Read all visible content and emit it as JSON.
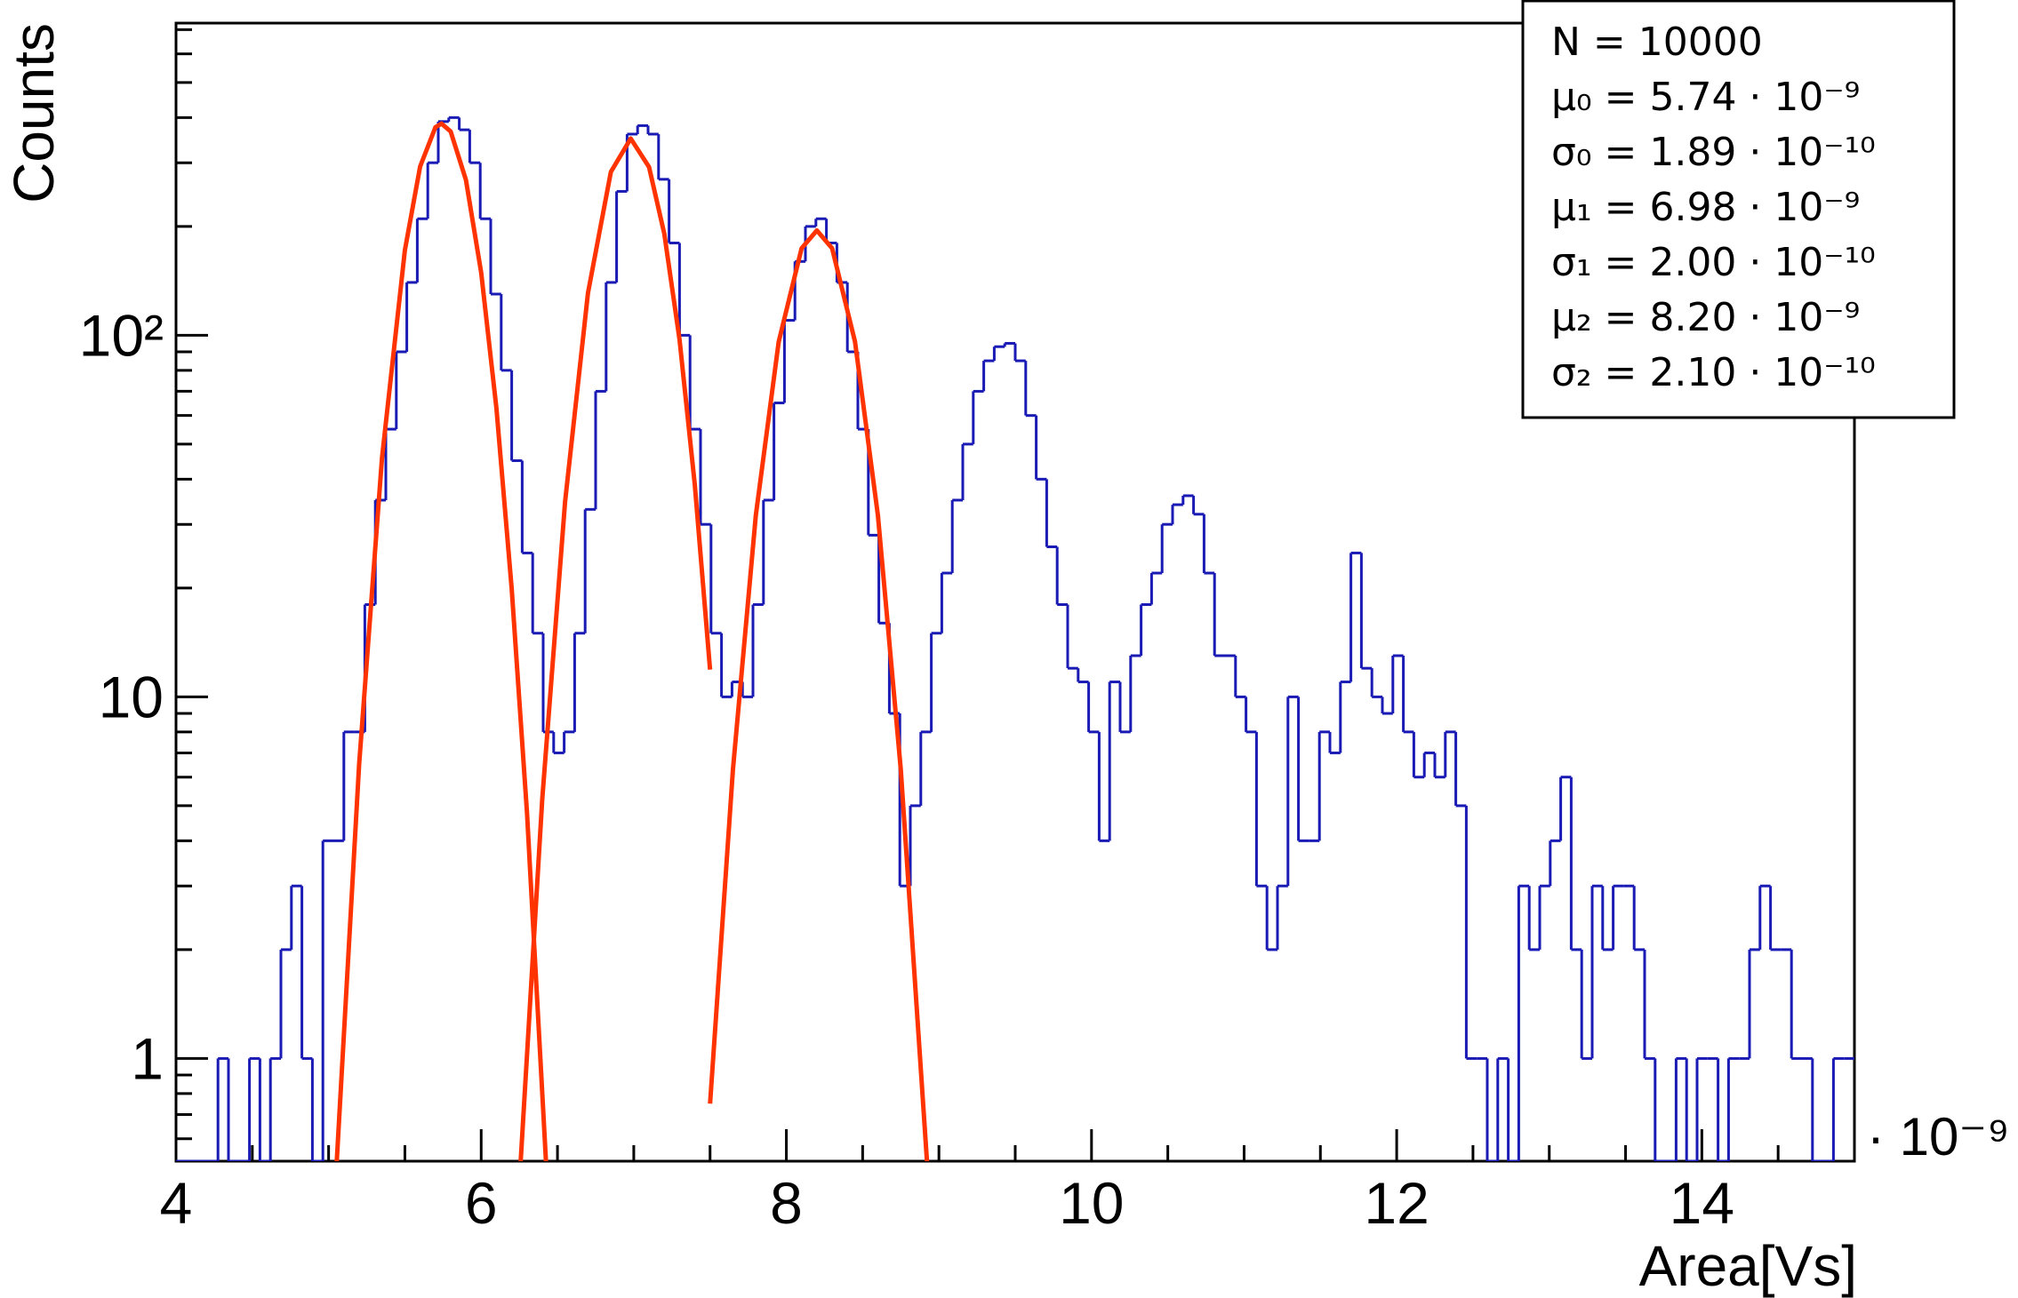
{
  "chart_data": {
    "type": "histogram",
    "y_label": "Counts",
    "x_label": "Area[Vs]",
    "x_multiplier": "· 10⁻⁹",
    "log_y": true,
    "color": "#1a1ab4",
    "fit_color": "#ff3300",
    "xlim": [
      4,
      15
    ],
    "xticks": [
      4,
      6,
      8,
      10,
      12,
      14
    ],
    "ylim": [
      0.52,
      730
    ],
    "yticks": [
      1,
      10,
      {
        "value": 100,
        "label": "10²"
      }
    ],
    "stats": [
      "N = 10000",
      "μ₀ = 5.74 · 10⁻⁹",
      "σ₀ = 1.89 · 10⁻¹⁰",
      "μ₁ = 6.98 · 10⁻⁹",
      "σ₁ = 2.00 · 10⁻¹⁰",
      "μ₂ = 8.20 · 10⁻⁹",
      "σ₂ = 2.10 · 10⁻¹⁰"
    ],
    "bins": [
      4,
      4.06875,
      4.1375,
      4.20625,
      4.275,
      4.34375,
      4.4125,
      4.48125,
      4.55,
      4.61875,
      4.6875,
      4.75625,
      4.825,
      4.89375,
      4.9625,
      5.03125,
      5.1,
      5.16875,
      5.2375,
      5.30625,
      5.375,
      5.44375,
      5.5125,
      5.58125,
      5.65,
      5.71875,
      5.7875,
      5.85625,
      5.925,
      5.99375,
      6.0625,
      6.13125,
      6.2,
      6.26875,
      6.3375,
      6.40625,
      6.475,
      6.54375,
      6.6125,
      6.68125,
      6.75,
      6.81875,
      6.8875,
      6.95625,
      7.025,
      7.09375,
      7.1625,
      7.23125,
      7.3,
      7.36875,
      7.4375,
      7.50625,
      7.575,
      7.64375,
      7.7125,
      7.78125,
      7.85,
      7.91875,
      7.9875,
      8.05625,
      8.125,
      8.19375,
      8.2625,
      8.33125,
      8.4,
      8.46875,
      8.5375,
      8.60625,
      8.675,
      8.74375,
      8.8125,
      8.88125,
      8.95,
      9.01875,
      9.0875,
      9.15625,
      9.225,
      9.29375,
      9.3625,
      9.43125,
      9.5,
      9.56875,
      9.6375,
      9.70625,
      9.775,
      9.84375,
      9.9125,
      9.98125,
      10.05,
      10.11875,
      10.1875,
      10.25625,
      10.325,
      10.39375,
      10.4625,
      10.53125,
      10.6,
      10.66875,
      10.7375,
      10.80625,
      10.875,
      10.94375,
      11.0125,
      11.08125,
      11.15,
      11.21875,
      11.2875,
      11.35625,
      11.425,
      11.49375,
      11.5625,
      11.63125,
      11.7,
      11.76875,
      11.8375,
      11.90625,
      11.975,
      12.04375,
      12.1125,
      12.18125,
      12.25,
      12.31875,
      12.3875,
      12.45625,
      12.525,
      12.59375,
      12.6625,
      12.73125,
      12.8,
      12.86875,
      12.9375,
      13.00625,
      13.075,
      13.14375,
      13.2125,
      13.28125,
      13.35,
      13.41875,
      13.4875,
      13.55625,
      13.625,
      13.69375,
      13.7625,
      13.83125,
      13.9,
      13.96875,
      14.0375,
      14.10625,
      14.175,
      14.24375,
      14.3125,
      14.38125,
      14.45,
      14.51875,
      14.5875,
      14.65625,
      14.725,
      14.79375,
      14.8625,
      14.93125,
      15
    ],
    "values": [
      0,
      0,
      0,
      0,
      1,
      0,
      0,
      1,
      0,
      1,
      2,
      3,
      1,
      0,
      4,
      4,
      8,
      8,
      18,
      35,
      55,
      90,
      140,
      210,
      300,
      390,
      400,
      370,
      300,
      210,
      130,
      80,
      45,
      25,
      15,
      8,
      7,
      8,
      15,
      33,
      70,
      140,
      250,
      360,
      380,
      360,
      270,
      180,
      100,
      55,
      30,
      15,
      10,
      11,
      10,
      18,
      35,
      65,
      110,
      160,
      200,
      210,
      180,
      140,
      90,
      55,
      28,
      16,
      9,
      3,
      5,
      8,
      15,
      22,
      35,
      50,
      70,
      85,
      93,
      95,
      85,
      60,
      40,
      26,
      18,
      12,
      11,
      8,
      4,
      11,
      8,
      13,
      18,
      22,
      30,
      34,
      36,
      32,
      22,
      13,
      13,
      10,
      8,
      3,
      2,
      3,
      10,
      4,
      4,
      8,
      7,
      11,
      25,
      12,
      10,
      9,
      13,
      8,
      6,
      7,
      6,
      8,
      5,
      1,
      1,
      0,
      1,
      0,
      3,
      2,
      3,
      4,
      6,
      2,
      1,
      3,
      2,
      3,
      3,
      2,
      1,
      0,
      0,
      1,
      0,
      1,
      1,
      0,
      1,
      1,
      2,
      3,
      2,
      2,
      1,
      1,
      0,
      0,
      1,
      1
    ],
    "fits": [
      {
        "x": [
          5.05,
          5.2,
          5.35,
          5.5,
          5.6,
          5.7,
          5.74,
          5.8,
          5.9,
          6.0,
          6.1,
          6.2,
          6.3,
          6.45
        ],
        "values": [
          0.49,
          6.5,
          45.8,
          172,
          293,
          376,
          385,
          366,
          269,
          149,
          62.8,
          19.9,
          4.8,
          0.33
        ]
      },
      {
        "x": [
          6.25,
          6.4,
          6.55,
          6.7,
          6.85,
          6.98,
          7.1,
          7.2,
          7.3,
          7.4,
          7.5
        ],
        "values": [
          0.45,
          5.2,
          34.7,
          131,
          283,
          350,
          292,
          191,
          97.3,
          38.6,
          11.9
        ]
      },
      {
        "x": [
          7.5,
          7.65,
          7.8,
          7.95,
          8.1,
          8.2,
          8.3,
          8.45,
          8.6,
          8.75,
          8.93
        ],
        "values": [
          0.75,
          6.3,
          31.8,
          96,
          174,
          195,
          174,
          96,
          31.8,
          6.3,
          0.46
        ]
      }
    ]
  }
}
